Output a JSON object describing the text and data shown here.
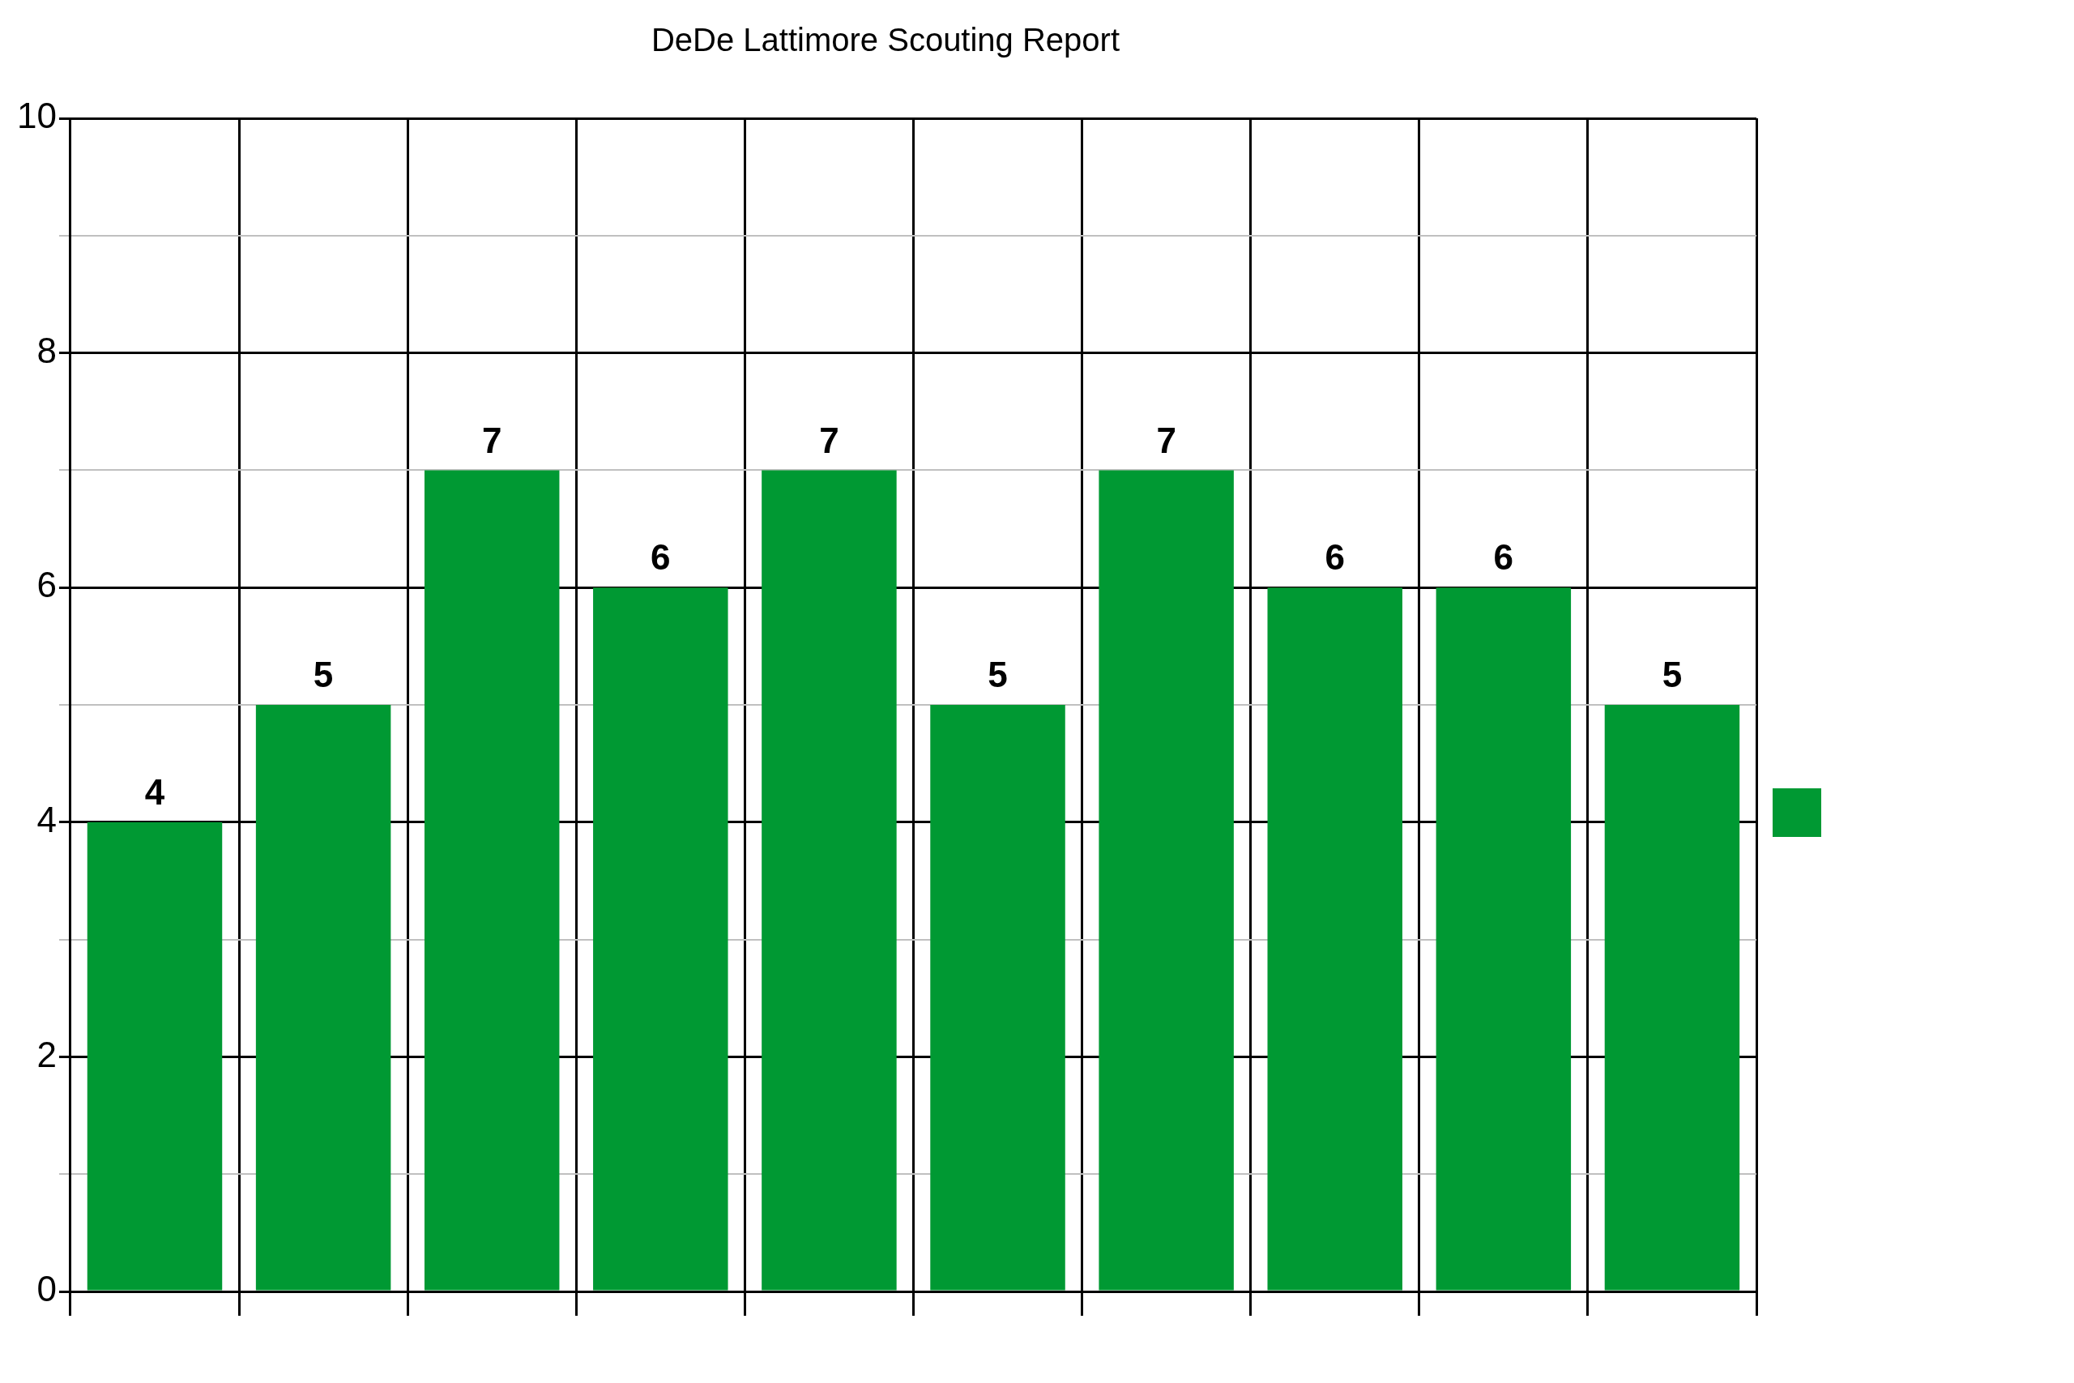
{
  "chart_data": {
    "type": "bar",
    "title": "DeDe Lattimore Scouting Report",
    "categories": [
      null,
      null,
      null,
      null,
      null,
      null,
      null,
      null,
      null,
      null
    ],
    "series": [
      {
        "color": "#009933",
        "values": [
          4,
          5,
          7,
          6,
          7,
          5,
          7,
          6,
          6,
          5
        ]
      }
    ],
    "ylim": [
      0,
      10
    ],
    "yticks": [
      0,
      {
        "value": 1,
        "label": null
      },
      2,
      {
        "value": 3,
        "label": null
      },
      4,
      {
        "value": 5,
        "label": null
      },
      6,
      {
        "value": 7,
        "label": null
      },
      8,
      {
        "value": 9,
        "label": null
      },
      10
    ],
    "grid": true,
    "data_labels": true
  }
}
